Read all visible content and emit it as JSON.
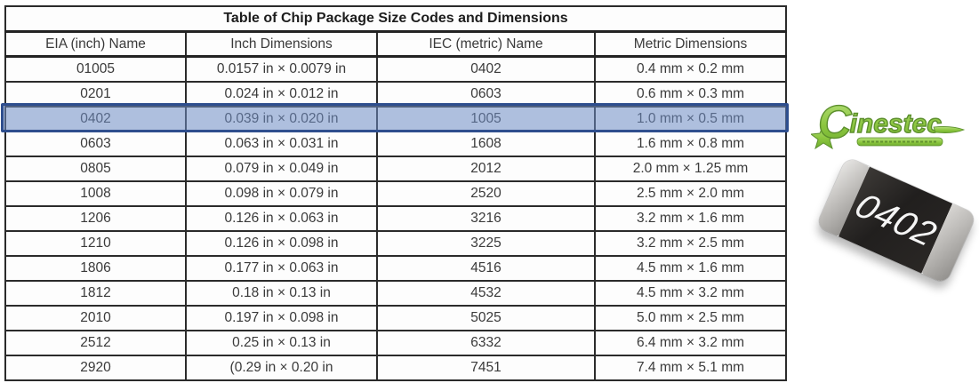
{
  "table": {
    "title": "Table of Chip Package Size Codes and Dimensions",
    "columns": [
      "EIA (inch) Name",
      "Inch Dimensions",
      "IEC (metric) Name",
      "Metric Dimensions"
    ],
    "rows": [
      [
        "01005",
        "0.0157 in × 0.0079 in",
        "0402",
        "0.4 mm × 0.2 mm"
      ],
      [
        "0201",
        "0.024 in × 0.012 in",
        "0603",
        "0.6 mm × 0.3 mm"
      ],
      [
        "0402",
        "0.039 in × 0.020 in",
        "1005",
        "1.0 mm × 0.5 mm"
      ],
      [
        "0603",
        "0.063 in × 0.031 in",
        "1608",
        "1.6 mm × 0.8 mm"
      ],
      [
        "0805",
        "0.079 in × 0.049 in",
        "2012",
        "2.0 mm × 1.25 mm"
      ],
      [
        "1008",
        "0.098 in × 0.079 in",
        "2520",
        "2.5 mm × 2.0 mm"
      ],
      [
        "1206",
        "0.126 in × 0.063 in",
        "3216",
        "3.2 mm × 1.6 mm"
      ],
      [
        "1210",
        "0.126 in × 0.098 in",
        "3225",
        "3.2 mm × 2.5 mm"
      ],
      [
        "1806",
        "0.177 in × 0.063 in",
        "4516",
        "4.5 mm × 1.6 mm"
      ],
      [
        "1812",
        "0.18 in × 0.13 in",
        "4532",
        "4.5 mm × 3.2 mm"
      ],
      [
        "2010",
        "0.197 in × 0.098 in",
        "5025",
        "5.0 mm × 2.5 mm"
      ],
      [
        "2512",
        "0.25 in × 0.13 in",
        "6332",
        "6.4 mm × 3.2 mm"
      ],
      [
        "2920",
        "(0.29 in × 0.20 in",
        "7451",
        "7.4 mm × 5.1 mm"
      ]
    ],
    "highlight": {
      "row_index": 2,
      "fill_color": "#6e8cc4",
      "border_color": "#2e4e8e"
    }
  },
  "logo": {
    "text": "Cinestec",
    "color": "#8cc63f",
    "outline_color": "#5c8f2d"
  },
  "chip": {
    "label": "0402",
    "body_color": "#242120",
    "cap_color": "#b9b7b4"
  }
}
